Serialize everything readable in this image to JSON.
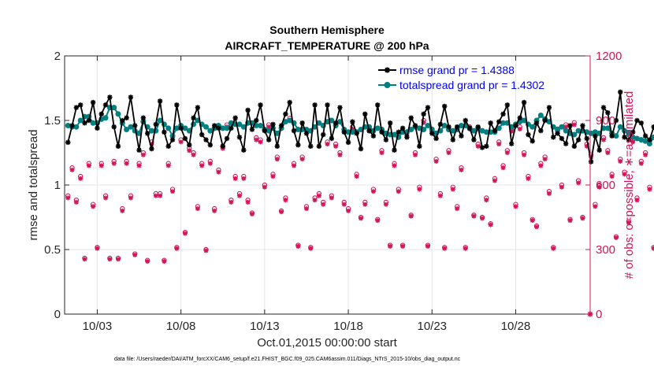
{
  "chart_data": {
    "type": "line",
    "title_line1": "Southern Hemisphere",
    "title_line2": "AIRCRAFT_TEMPERATURE @ 200 hPa",
    "xlabel": "Oct.01,2015 00:00:00 start",
    "ylabel_left": "rmse and totalspread",
    "ylabel_right": "# of obs: o=possible; ∗=assimilated",
    "footnote": "data file: /Users/raeder/DAI/ATM_forcXX/CAM6_setup/f.e21.FHIST_BGC.f09_025.CAM6assim.011/Diags_NTrS_2015-10/obs_diag_output.nc",
    "x_range_days": [
      1.05,
      32.45
    ],
    "x_ticks": [
      3,
      8,
      13,
      18,
      23,
      28
    ],
    "x_tick_labels": [
      "10/03",
      "10/08",
      "10/13",
      "10/18",
      "10/23",
      "10/28"
    ],
    "ylim_left": [
      0,
      2
    ],
    "y_ticks_left": [
      0,
      0.5,
      1,
      1.5,
      2
    ],
    "y_tick_labels_left": [
      "0",
      "0.5",
      "1",
      "1.5",
      "2"
    ],
    "ylim_right": [
      0,
      1200
    ],
    "y_ticks_right": [
      0,
      300,
      600,
      900,
      1200
    ],
    "y_tick_labels_right": [
      "0",
      "300",
      "600",
      "900",
      "1200"
    ],
    "x_start_day": 1.25,
    "x_step_days": 0.25,
    "series": [
      {
        "name": "rmse",
        "legend": "rmse grand pr = 1.4388",
        "color": "#000000",
        "values": [
          1.33,
          1.46,
          1.6,
          1.62,
          1.48,
          1.5,
          1.64,
          1.44,
          1.55,
          1.62,
          1.68,
          1.45,
          1.3,
          1.5,
          1.52,
          1.68,
          1.46,
          1.27,
          1.52,
          1.4,
          1.28,
          1.47,
          1.65,
          1.41,
          1.3,
          1.35,
          1.62,
          1.44,
          1.36,
          1.31,
          1.52,
          1.6,
          1.39,
          1.35,
          1.31,
          1.46,
          1.44,
          1.3,
          1.36,
          1.44,
          1.52,
          1.37,
          1.27,
          1.58,
          1.43,
          1.5,
          1.62,
          1.42,
          1.35,
          1.47,
          1.3,
          1.46,
          1.55,
          1.64,
          1.42,
          1.31,
          1.48,
          1.4,
          1.3,
          1.62,
          1.3,
          1.39,
          1.62,
          1.36,
          1.48,
          1.6,
          1.41,
          1.33,
          1.49,
          1.4,
          1.28,
          1.55,
          1.42,
          1.38,
          1.62,
          1.41,
          1.35,
          1.48,
          1.27,
          1.41,
          1.44,
          1.37,
          1.52,
          1.46,
          1.3,
          1.55,
          1.6,
          1.4,
          1.36,
          1.47,
          1.61,
          1.45,
          1.35,
          1.45,
          1.38,
          1.5,
          1.44,
          1.35,
          1.45,
          1.29,
          1.3,
          1.48,
          1.42,
          1.49,
          1.55,
          1.62,
          1.32,
          1.46,
          1.52,
          1.64,
          1.39,
          1.34,
          1.48,
          1.42,
          1.5,
          1.6,
          1.37,
          1.4,
          1.36,
          1.32,
          1.46,
          1.3,
          1.35,
          1.46,
          1.36,
          1.18,
          1.38,
          1.27,
          1.6,
          1.56,
          1.38,
          1.5,
          1.72,
          1.37,
          1.35,
          1.41,
          1.5,
          1.48,
          1.38,
          1.35,
          1.45,
          1.33,
          1.24,
          1.48,
          1.32,
          1.42,
          1.48,
          1.3,
          1.41,
          1.38,
          1.55,
          1.41,
          1.48,
          1.62,
          1.35,
          1.42,
          1.55,
          1.48,
          1.43,
          1.49,
          1.58,
          1.42,
          1.36,
          1.46,
          1.52,
          1.41,
          1.36,
          1.32,
          1.4,
          1.3,
          1.36,
          1.45,
          1.33,
          1.28,
          1.45,
          1.39,
          1.46,
          1.48,
          1.35,
          1.5,
          1.55,
          1.46,
          1.75,
          1.45,
          1.55,
          1.45,
          1.6,
          1.45,
          1.4,
          1.51,
          1.5,
          1.4,
          1.49,
          1.4,
          1.3
        ],
        "markers": "asterisk"
      },
      {
        "name": "totalspread",
        "legend": "totalspread grand pr = 1.4302",
        "color": "#008080",
        "values": [
          1.46,
          1.45,
          1.45,
          1.5,
          1.53,
          1.53,
          1.48,
          1.48,
          1.51,
          1.52,
          1.6,
          1.6,
          1.55,
          1.48,
          1.43,
          1.45,
          1.42,
          1.4,
          1.49,
          1.45,
          1.42,
          1.42,
          1.5,
          1.47,
          1.44,
          1.38,
          1.44,
          1.46,
          1.44,
          1.42,
          1.47,
          1.5,
          1.47,
          1.45,
          1.42,
          1.44,
          1.46,
          1.44,
          1.44,
          1.48,
          1.47,
          1.47,
          1.45,
          1.48,
          1.48,
          1.46,
          1.46,
          1.43,
          1.42,
          1.44,
          1.4,
          1.44,
          1.49,
          1.5,
          1.48,
          1.43,
          1.43,
          1.43,
          1.42,
          1.45,
          1.48,
          1.46,
          1.49,
          1.5,
          1.46,
          1.49,
          1.43,
          1.41,
          1.41,
          1.41,
          1.43,
          1.45,
          1.45,
          1.42,
          1.44,
          1.43,
          1.4,
          1.39,
          1.39,
          1.37,
          1.41,
          1.41,
          1.43,
          1.45,
          1.44,
          1.43,
          1.46,
          1.43,
          1.4,
          1.42,
          1.46,
          1.43,
          1.42,
          1.43,
          1.46,
          1.46,
          1.44,
          1.42,
          1.44,
          1.42,
          1.41,
          1.41,
          1.41,
          1.44,
          1.48,
          1.48,
          1.45,
          1.47,
          1.49,
          1.5,
          1.47,
          1.45,
          1.5,
          1.54,
          1.51,
          1.49,
          1.45,
          1.43,
          1.45,
          1.42,
          1.4,
          1.39,
          1.42,
          1.42,
          1.41,
          1.4,
          1.41,
          1.4,
          1.44,
          1.44,
          1.4,
          1.38,
          1.45,
          1.42,
          1.4,
          1.37,
          1.36,
          1.35,
          1.34,
          1.32,
          1.37,
          1.38,
          1.4,
          1.4,
          1.42,
          1.46,
          1.45,
          1.43,
          1.41,
          1.44,
          1.48,
          1.52,
          1.5,
          1.48,
          1.46,
          1.48,
          1.52,
          1.55,
          1.5,
          1.46,
          1.44,
          1.43,
          1.47,
          1.48,
          1.44,
          1.4,
          1.41,
          1.4,
          1.36,
          1.37,
          1.35,
          1.36,
          1.38,
          1.37,
          1.39,
          1.45,
          1.45,
          1.44,
          1.43,
          1.46,
          1.5,
          1.52,
          1.55,
          1.53,
          1.5,
          1.48,
          1.52,
          1.48,
          1.45,
          1.44,
          1.46,
          1.44,
          1.42,
          1.45,
          1.48
        ],
        "markers": "circle"
      }
    ],
    "obs_possible_values": [
      550,
      680,
      530,
      640,
      260,
      700,
      510,
      310,
      700,
      550,
      260,
      710,
      260,
      490,
      710,
      550,
      280,
      700,
      750,
      250,
      800,
      560,
      560,
      250,
      700,
      580,
      310,
      810,
      380,
      770,
      750,
      500,
      700,
      300,
      710,
      490,
      670,
      780,
      880,
      530,
      640,
      560,
      640,
      530,
      470,
      820,
      810,
      600,
      880,
      650,
      730,
      480,
      540,
      910,
      700,
      320,
      730,
      500,
      310,
      540,
      560,
      520,
      800,
      550,
      790,
      750,
      520,
      490,
      870,
      650,
      450,
      520,
      860,
      580,
      440,
      760,
      520,
      320,
      700,
      580,
      320,
      840,
      460,
      750,
      590,
      900,
      320,
      860,
      720,
      560,
      310,
      760,
      590,
      500,
      680,
      310,
      870,
      460,
      790,
      450,
      540,
      420,
      630,
      800,
      690,
      760,
      860,
      510,
      870,
      750,
      640,
      440,
      410,
      700,
      730,
      570,
      310,
      860,
      600,
      880,
      440,
      890,
      620,
      450,
      790,
      740,
      510,
      600,
      820,
      760,
      650,
      360,
      720,
      660,
      430,
      810,
      540,
      710,
      750,
      590,
      310,
      470,
      720,
      390,
      690,
      650,
      300,
      730,
      620,
      730,
      620,
      380,
      740,
      660,
      520,
      500,
      440,
      730,
      300,
      800,
      420,
      720,
      530,
      550,
      630,
      830,
      720,
      390,
      740,
      830,
      370,
      560,
      700,
      590,
      540,
      470,
      790,
      460,
      650,
      780,
      700,
      410,
      690,
      760,
      590,
      510,
      350,
      890,
      660,
      710,
      330,
      750,
      700,
      530,
      650,
      320,
      700,
      540,
      830,
      470
    ],
    "obs_assimilated_values": [
      540,
      670,
      520,
      630,
      255,
      690,
      500,
      305,
      690,
      540,
      255,
      700,
      255,
      480,
      700,
      540,
      275,
      690,
      740,
      245,
      790,
      550,
      550,
      245,
      690,
      570,
      305,
      800,
      375,
      760,
      740,
      490,
      690,
      295,
      700,
      480,
      660,
      770,
      870,
      520,
      630,
      550,
      630,
      520,
      465,
      810,
      800,
      590,
      870,
      640,
      720,
      475,
      530,
      900,
      690,
      315,
      720,
      490,
      305,
      530,
      550,
      510,
      790,
      540,
      780,
      740,
      510,
      480,
      860,
      640,
      445,
      510,
      850,
      570,
      435,
      750,
      510,
      315,
      690,
      570,
      315,
      830,
      455,
      740,
      580,
      890,
      315,
      850,
      710,
      550,
      305,
      750,
      580,
      490,
      670,
      305,
      860,
      455,
      780,
      445,
      530,
      415,
      620,
      790,
      680,
      750,
      850,
      500,
      860,
      740,
      630,
      435,
      405,
      690,
      720,
      560,
      305,
      850,
      590,
      870,
      435,
      880,
      610,
      445,
      780,
      730,
      500,
      590,
      810,
      750,
      640,
      355,
      710,
      650,
      425,
      800,
      530,
      700,
      740,
      580,
      305,
      465,
      710,
      385,
      680,
      640,
      295,
      720,
      610,
      720,
      610,
      375,
      730,
      650,
      510,
      490,
      435,
      720,
      295,
      790,
      415,
      710,
      520,
      540,
      620,
      820,
      710,
      385,
      730,
      820,
      365,
      550,
      690,
      580,
      530,
      465,
      780,
      455,
      640,
      770,
      690,
      405,
      680,
      750,
      580,
      500,
      345,
      880,
      650,
      700,
      325,
      740,
      690,
      520,
      640,
      315,
      690,
      530,
      820,
      465
    ],
    "obs_color": "#d4145a"
  }
}
